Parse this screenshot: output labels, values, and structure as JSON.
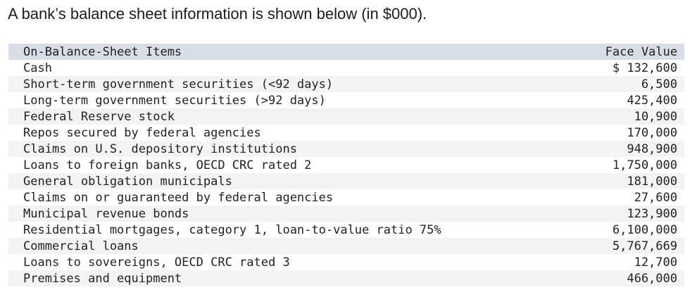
{
  "intro": "A bank’s balance sheet information is shown below (in $000).",
  "table": {
    "headers": {
      "item": "On-Balance-Sheet Items",
      "value": "Face Value"
    },
    "rows": [
      {
        "item": "Cash",
        "value": "$ 132,600"
      },
      {
        "item": "Short-term government securities (<92 days)",
        "value": "6,500"
      },
      {
        "item": "Long-term government securities (>92 days)",
        "value": "425,400"
      },
      {
        "item": "Federal Reserve stock",
        "value": "10,900"
      },
      {
        "item": "Repos secured by federal agencies",
        "value": "170,000"
      },
      {
        "item": "Claims on U.S. depository institutions",
        "value": "948,900"
      },
      {
        "item": "Loans to foreign banks, OECD CRC rated 2",
        "value": "1,750,000"
      },
      {
        "item": "General obligation municipals",
        "value": "181,000"
      },
      {
        "item": "Claims on or guaranteed by federal agencies",
        "value": "27,600"
      },
      {
        "item": "Municipal revenue bonds",
        "value": "123,900"
      },
      {
        "item": "Residential mortgages, category 1, loan-to-value ratio 75%",
        "value": "6,100,000"
      },
      {
        "item": "Commercial loans",
        "value": "5,767,669"
      },
      {
        "item": "Loans to sovereigns, OECD CRC rated 3",
        "value": "12,700"
      },
      {
        "item": "Premises and equipment",
        "value": "466,000"
      }
    ]
  }
}
